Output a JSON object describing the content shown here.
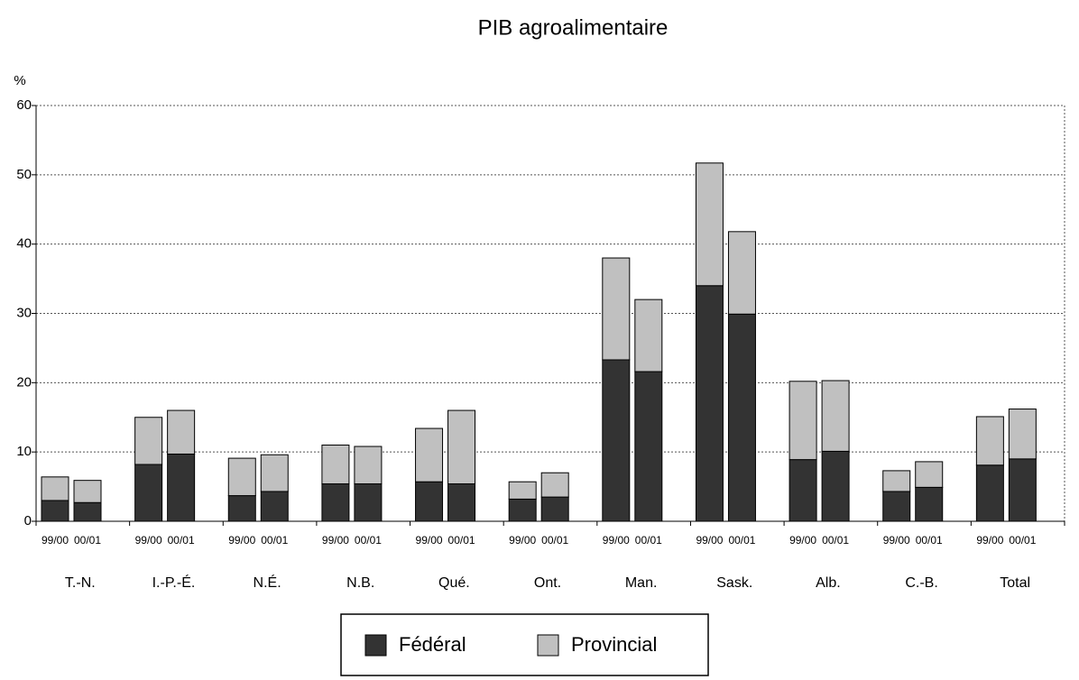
{
  "chart_data": {
    "type": "stacked-grouped-bar",
    "title": "PIB agroalimentaire",
    "y_label": "%",
    "categories": [
      "T.-N.",
      "I.-P.-É.",
      "N.É.",
      "N.B.",
      "Qué.",
      "Ont.",
      "Man.",
      "Sask.",
      "Alb.",
      "C.-B.",
      "Total"
    ],
    "sub_categories": [
      "99/00",
      "00/01"
    ],
    "series": [
      {
        "name": "Fédéral",
        "color": "#333333",
        "values": [
          [
            3.0,
            2.7
          ],
          [
            8.2,
            9.7
          ],
          [
            3.7,
            4.3
          ],
          [
            5.4,
            5.4
          ],
          [
            5.7,
            5.4
          ],
          [
            3.2,
            3.5
          ],
          [
            23.3,
            21.6
          ],
          [
            34.0,
            29.9
          ],
          [
            8.9,
            10.1
          ],
          [
            4.3,
            4.9
          ],
          [
            8.1,
            9.0
          ]
        ]
      },
      {
        "name": "Provincial",
        "color": "#c0c0c0",
        "values": [
          [
            3.4,
            3.2
          ],
          [
            6.8,
            6.3
          ],
          [
            5.4,
            5.3
          ],
          [
            5.6,
            5.4
          ],
          [
            7.7,
            10.6
          ],
          [
            2.5,
            3.5
          ],
          [
            14.7,
            10.4
          ],
          [
            17.7,
            11.9
          ],
          [
            11.3,
            10.2
          ],
          [
            3.0,
            3.7
          ],
          [
            7.0,
            7.2
          ]
        ]
      }
    ],
    "ylim": [
      0,
      60
    ],
    "yticks": [
      0,
      10,
      20,
      30,
      40,
      50,
      60
    ],
    "grid": true,
    "legend": "bottom"
  }
}
